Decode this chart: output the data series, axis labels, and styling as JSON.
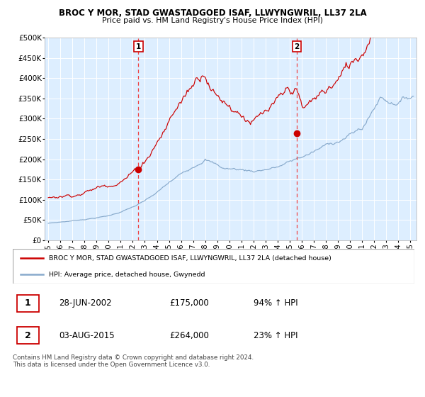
{
  "title": "BROC Y MOR, STAD GWASTADGOED ISAF, LLWYNGWRIL, LL37 2LA",
  "subtitle": "Price paid vs. HM Land Registry's House Price Index (HPI)",
  "ylim": [
    0,
    500000
  ],
  "yticks": [
    0,
    50000,
    100000,
    150000,
    200000,
    250000,
    300000,
    350000,
    400000,
    450000,
    500000
  ],
  "ytick_labels": [
    "£0",
    "£50K",
    "£100K",
    "£150K",
    "£200K",
    "£250K",
    "£300K",
    "£350K",
    "£400K",
    "£450K",
    "£500K"
  ],
  "xlim_start": 1994.7,
  "xlim_end": 2025.5,
  "xticks": [
    1995,
    1996,
    1997,
    1998,
    1999,
    2000,
    2001,
    2002,
    2003,
    2004,
    2005,
    2006,
    2007,
    2008,
    2009,
    2010,
    2011,
    2012,
    2013,
    2014,
    2015,
    2016,
    2017,
    2018,
    2019,
    2020,
    2021,
    2022,
    2023,
    2024,
    2025
  ],
  "background_color": "#ffffff",
  "plot_bg_color": "#ddeeff",
  "grid_color": "#ffffff",
  "red_line_color": "#cc0000",
  "blue_line_color": "#88aacc",
  "marker_color": "#cc0000",
  "vline_color": "#ee4444",
  "sale1_x": 2002.46,
  "sale1_y": 175000,
  "sale2_x": 2015.58,
  "sale2_y": 264000,
  "legend_line1": "BROC Y MOR, STAD GWASTADGOED ISAF, LLWYNGWRIL, LL37 2LA (detached house)",
  "legend_line2": "HPI: Average price, detached house, Gwynedd",
  "note1_label": "1",
  "note1_date": "28-JUN-2002",
  "note1_price": "£175,000",
  "note1_hpi": "94% ↑ HPI",
  "note2_label": "2",
  "note2_date": "03-AUG-2015",
  "note2_price": "£264,000",
  "note2_hpi": "23% ↑ HPI",
  "footer": "Contains HM Land Registry data © Crown copyright and database right 2024.\nThis data is licensed under the Open Government Licence v3.0."
}
